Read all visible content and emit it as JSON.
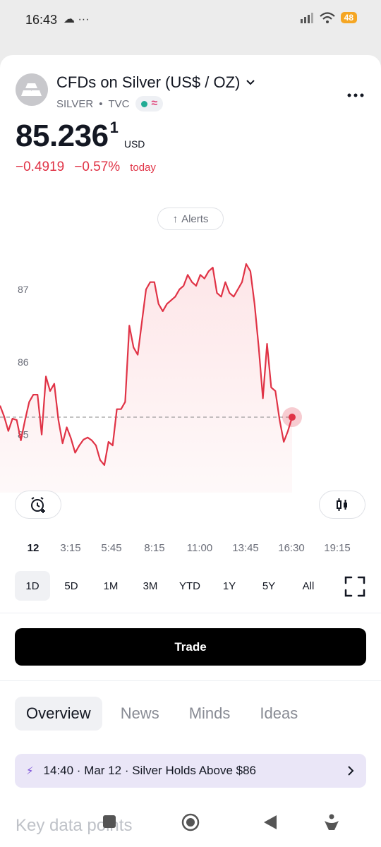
{
  "status_bar": {
    "time": "16:43",
    "left_icons": "☁ ···",
    "battery": "48"
  },
  "header": {
    "title": "CFDs on Silver (US$ / OZ)",
    "symbol": "SILVER",
    "separator": "•",
    "exchange": "TVC",
    "wave": "≈"
  },
  "price": {
    "main": "85.236",
    "superscript": "1",
    "currency": "USD",
    "change_abs": "−0.4919",
    "change_pct": "−0.57%",
    "change_label": "today"
  },
  "alerts_button": {
    "label": "Alerts",
    "arrow": "↑"
  },
  "chart_data": {
    "type": "area",
    "y_ticks": [
      "87",
      "86",
      "85"
    ],
    "y_tick_values": [
      87,
      86,
      85
    ],
    "reference_line": 85.24,
    "x_labels": [
      "12",
      "3:15",
      "5:45",
      "8:15",
      "11:00",
      "13:45",
      "16:30",
      "19:15"
    ],
    "values": [
      85.4,
      85.25,
      85.05,
      85.22,
      85.2,
      84.92,
      85.2,
      85.45,
      85.55,
      85.55,
      85.0,
      85.8,
      85.6,
      85.7,
      85.2,
      84.88,
      85.1,
      84.95,
      84.75,
      84.85,
      84.93,
      84.96,
      84.92,
      84.85,
      84.65,
      84.58,
      84.9,
      84.85,
      85.35,
      85.35,
      85.45,
      86.5,
      86.2,
      86.1,
      86.55,
      87.0,
      87.1,
      87.1,
      86.8,
      86.7,
      86.8,
      86.85,
      86.9,
      87.0,
      87.05,
      87.2,
      87.1,
      87.05,
      87.2,
      87.15,
      87.25,
      87.3,
      86.95,
      86.9,
      87.1,
      86.95,
      86.9,
      87.0,
      87.1,
      87.35,
      87.25,
      86.8,
      86.2,
      85.5,
      86.25,
      85.65,
      85.6,
      85.2,
      84.9,
      85.05,
      85.24
    ],
    "last_value": 85.24,
    "y_range": [
      84.2,
      87.7
    ],
    "line_color": "#e03346",
    "fill_color": "#fde6e8"
  },
  "range_buttons": [
    "1D",
    "5D",
    "1M",
    "3M",
    "YTD",
    "1Y",
    "5Y",
    "All"
  ],
  "active_range": "1D",
  "trade_button": {
    "label": "Trade"
  },
  "tabs": [
    "Overview",
    "News",
    "Minds",
    "Ideas"
  ],
  "active_tab": "Overview",
  "news_banner": {
    "text": "14:40 · Mar 12 · Silver Holds Above $86"
  },
  "section_title": "Key data points",
  "colors": {
    "accent_red": "#e03346",
    "trade_bg": "#000000",
    "banner_bg": "#eae6f7"
  }
}
